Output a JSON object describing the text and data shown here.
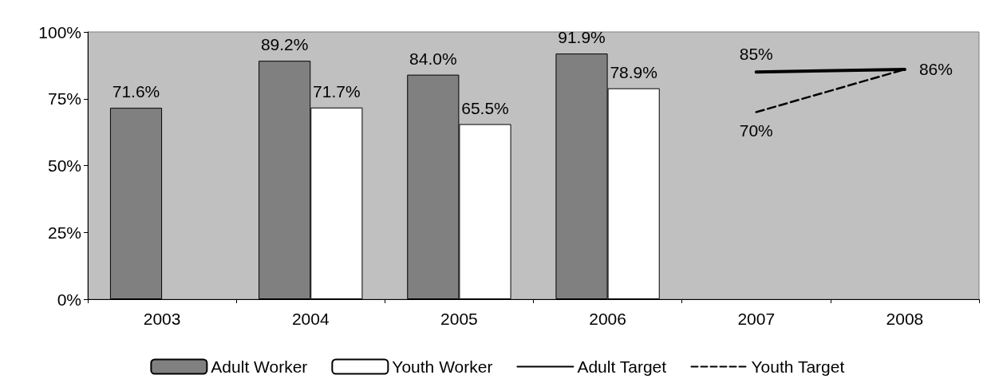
{
  "chart_data": {
    "type": "bar",
    "categories": [
      "2003",
      "2004",
      "2005",
      "2006",
      "2007",
      "2008"
    ],
    "series": [
      {
        "name": "Adult Worker",
        "color": "#808080",
        "values": [
          71.6,
          89.2,
          84.0,
          91.9,
          null,
          null
        ],
        "value_labels": [
          "71.6%",
          "89.2%",
          "84.0%",
          "91.9%",
          null,
          null
        ]
      },
      {
        "name": "Youth Worker",
        "color": "#ffffff",
        "values": [
          null,
          71.7,
          65.5,
          78.9,
          null,
          null
        ],
        "value_labels": [
          null,
          "71.7%",
          "65.5%",
          "78.9%",
          null,
          null
        ]
      },
      {
        "name": "Adult Target",
        "type": "line",
        "color": "#000000",
        "line_style": "solid",
        "values": [
          null,
          null,
          null,
          null,
          85,
          86
        ],
        "value_labels": [
          null,
          null,
          null,
          null,
          "85%",
          "86%"
        ]
      },
      {
        "name": "Youth Target",
        "type": "line",
        "color": "#000000",
        "line_style": "dashed",
        "values": [
          null,
          null,
          null,
          null,
          70,
          86
        ],
        "value_labels": [
          null,
          null,
          null,
          null,
          "70%",
          null
        ]
      }
    ],
    "ylim": [
      0,
      100
    ],
    "yticks": [
      {
        "value": 0,
        "label": "0%"
      },
      {
        "value": 25,
        "label": "25%"
      },
      {
        "value": 50,
        "label": "50%"
      },
      {
        "value": 75,
        "label": "75%"
      },
      {
        "value": 100,
        "label": "100%"
      }
    ],
    "grid": false,
    "legend": "bottom",
    "marker": "none"
  }
}
